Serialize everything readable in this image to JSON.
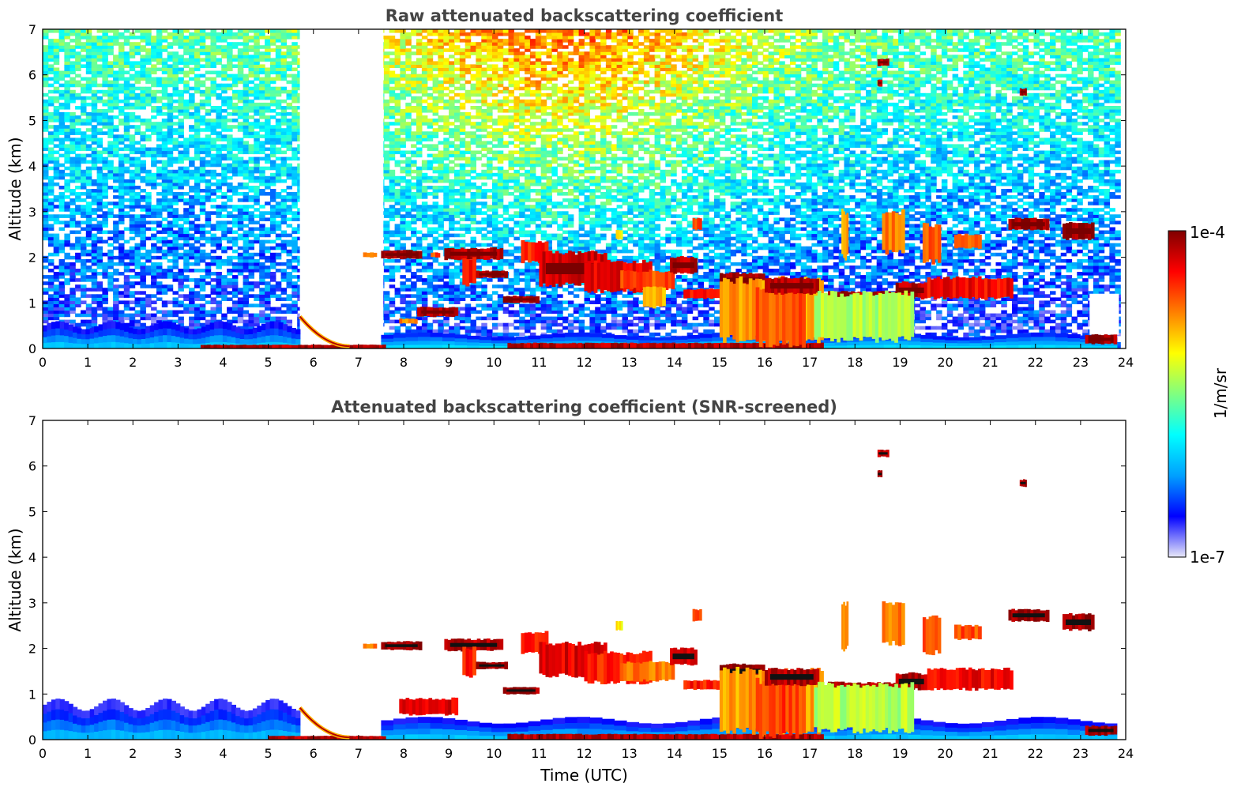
{
  "chart_data": [
    {
      "type": "heatmap",
      "title": "Raw attenuated backscattering coefficient",
      "xlabel": "",
      "ylabel": "Altitude (km)",
      "xlim": [
        0,
        24
      ],
      "ylim": [
        0,
        7
      ],
      "x_ticks": [
        "0",
        "1",
        "2",
        "3",
        "4",
        "5",
        "6",
        "7",
        "8",
        "9",
        "10",
        "11",
        "12",
        "13",
        "14",
        "15",
        "16",
        "17",
        "18",
        "19",
        "20",
        "21",
        "22",
        "23",
        "24"
      ],
      "y_ticks": [
        "0",
        "1",
        "2",
        "3",
        "4",
        "5",
        "6",
        "7"
      ],
      "noise_background": true,
      "features": [
        {
          "kind": "boundary_layer",
          "t0": 0,
          "t1": 5.7,
          "z0": 0,
          "z1": 0.6,
          "level": 0.12
        },
        {
          "kind": "boundary_layer",
          "t0": 7.5,
          "t1": 23.8,
          "z0": 0,
          "z1": 0.35,
          "level": 0.15
        },
        {
          "kind": "surface_layer",
          "t0": 3.5,
          "t1": 7.6,
          "z0": 0,
          "z1": 0.08,
          "level": 0.95
        },
        {
          "kind": "surface_layer",
          "t0": 10.3,
          "t1": 17.3,
          "z0": 0,
          "z1": 0.12,
          "level": 0.95
        },
        {
          "kind": "aerosol_arc",
          "t0": 5.7,
          "t1": 6.8,
          "z0": 0,
          "z1": 0.65,
          "level": 0.7
        },
        {
          "kind": "cloud",
          "t0": 7.1,
          "t1": 7.4,
          "z0": 2.0,
          "z1": 2.1,
          "level": 0.75
        },
        {
          "kind": "cloud",
          "t0": 7.5,
          "t1": 8.4,
          "z0": 1.97,
          "z1": 2.15,
          "level": 0.98
        },
        {
          "kind": "cloud",
          "t0": 8.6,
          "t1": 8.8,
          "z0": 2.0,
          "z1": 2.1,
          "level": 0.8
        },
        {
          "kind": "cloud",
          "t0": 8.9,
          "t1": 10.2,
          "z0": 1.95,
          "z1": 2.2,
          "level": 0.95
        },
        {
          "kind": "cloud",
          "t0": 9.3,
          "t1": 9.6,
          "z0": 1.4,
          "z1": 2.0,
          "level": 0.85
        },
        {
          "kind": "cloud",
          "t0": 9.6,
          "t1": 10.3,
          "z0": 1.55,
          "z1": 1.7,
          "level": 0.97
        },
        {
          "kind": "cloud",
          "t0": 8.3,
          "t1": 9.2,
          "z0": 0.7,
          "z1": 0.9,
          "level": 0.95
        },
        {
          "kind": "cloud",
          "t0": 7.9,
          "t1": 8.3,
          "z0": 0.55,
          "z1": 0.65,
          "level": 0.75
        },
        {
          "kind": "cloud",
          "t0": 10.2,
          "t1": 11.0,
          "z0": 1.0,
          "z1": 1.15,
          "level": 0.97
        },
        {
          "kind": "cloud",
          "t0": 10.6,
          "t1": 11.2,
          "z0": 1.9,
          "z1": 2.35,
          "level": 0.85
        },
        {
          "kind": "cloud",
          "t0": 11.0,
          "t1": 12.5,
          "z0": 1.4,
          "z1": 2.1,
          "level": 0.93
        },
        {
          "kind": "cloud",
          "t0": 12.0,
          "t1": 13.5,
          "z0": 1.25,
          "z1": 1.9,
          "level": 0.9
        },
        {
          "kind": "cloud",
          "t0": 12.8,
          "t1": 14.0,
          "z0": 1.3,
          "z1": 1.7,
          "level": 0.8
        },
        {
          "kind": "cloud",
          "t0": 13.3,
          "t1": 13.8,
          "z0": 0.9,
          "z1": 1.35,
          "level": 0.7
        },
        {
          "kind": "cloud",
          "t0": 13.9,
          "t1": 14.5,
          "z0": 1.65,
          "z1": 2.0,
          "level": 0.93
        },
        {
          "kind": "cloud",
          "t0": 14.2,
          "t1": 15.0,
          "z0": 1.1,
          "z1": 1.3,
          "level": 0.85
        },
        {
          "kind": "cloud",
          "t0": 15.0,
          "t1": 16.0,
          "z0": 1.35,
          "z1": 1.65,
          "level": 0.97
        },
        {
          "kind": "cloud",
          "t0": 15.0,
          "t1": 17.3,
          "z0": 0.2,
          "z1": 1.5,
          "level": 0.72
        },
        {
          "kind": "cloud",
          "t0": 15.8,
          "t1": 16.9,
          "z0": 0.1,
          "z1": 1.3,
          "level": 0.8
        },
        {
          "kind": "cloud",
          "t0": 16.0,
          "t1": 17.2,
          "z0": 1.2,
          "z1": 1.55,
          "level": 0.95
        },
        {
          "kind": "cloud",
          "t0": 17.4,
          "t1": 19.0,
          "z0": 0.95,
          "z1": 1.25,
          "level": 0.95
        },
        {
          "kind": "cloud",
          "t0": 18.9,
          "t1": 19.6,
          "z0": 1.1,
          "z1": 1.45,
          "level": 0.95
        },
        {
          "kind": "cloud",
          "t0": 17.1,
          "t1": 19.3,
          "z0": 0.2,
          "z1": 1.2,
          "level": 0.55
        },
        {
          "kind": "cloud",
          "t0": 17.7,
          "t1": 17.85,
          "z0": 2.0,
          "z1": 3.0,
          "level": 0.7
        },
        {
          "kind": "cloud",
          "t0": 18.6,
          "t1": 19.1,
          "z0": 2.1,
          "z1": 3.0,
          "level": 0.75
        },
        {
          "kind": "cloud",
          "t0": 19.5,
          "t1": 19.9,
          "z0": 1.9,
          "z1": 2.7,
          "level": 0.8
        },
        {
          "kind": "cloud",
          "t0": 19.6,
          "t1": 21.5,
          "z0": 1.1,
          "z1": 1.55,
          "level": 0.88
        },
        {
          "kind": "cloud",
          "t0": 20.2,
          "t1": 20.8,
          "z0": 2.2,
          "z1": 2.5,
          "level": 0.8
        },
        {
          "kind": "cloud",
          "t0": 21.4,
          "t1": 22.3,
          "z0": 2.6,
          "z1": 2.85,
          "level": 0.97
        },
        {
          "kind": "cloud",
          "t0": 22.6,
          "t1": 23.3,
          "z0": 2.4,
          "z1": 2.75,
          "level": 0.97
        },
        {
          "kind": "cloud",
          "t0": 23.1,
          "t1": 23.8,
          "z0": 0.1,
          "z1": 0.3,
          "level": 0.97
        },
        {
          "kind": "cloud",
          "t0": 14.4,
          "t1": 14.6,
          "z0": 2.6,
          "z1": 2.85,
          "level": 0.8
        },
        {
          "kind": "cloud",
          "t0": 12.7,
          "t1": 12.85,
          "z0": 2.4,
          "z1": 2.6,
          "level": 0.65
        },
        {
          "kind": "cloud",
          "t0": 18.5,
          "t1": 18.75,
          "z0": 6.2,
          "z1": 6.35,
          "level": 0.95
        },
        {
          "kind": "cloud",
          "t0": 21.65,
          "t1": 21.8,
          "z0": 5.55,
          "z1": 5.7,
          "level": 0.95
        },
        {
          "kind": "cloud",
          "t0": 18.5,
          "t1": 18.6,
          "z0": 5.75,
          "z1": 5.9,
          "level": 0.95
        }
      ]
    },
    {
      "type": "heatmap",
      "title": "Attenuated backscattering coefficient (SNR-screened)",
      "xlabel": "Time (UTC)",
      "ylabel": "Altitude (km)",
      "xlim": [
        0,
        24
      ],
      "ylim": [
        0,
        7
      ],
      "x_ticks": [
        "0",
        "1",
        "2",
        "3",
        "4",
        "5",
        "6",
        "7",
        "8",
        "9",
        "10",
        "11",
        "12",
        "13",
        "14",
        "15",
        "16",
        "17",
        "18",
        "19",
        "20",
        "21",
        "22",
        "23",
        "24"
      ],
      "y_ticks": [
        "0",
        "1",
        "2",
        "3",
        "4",
        "5",
        "6",
        "7"
      ],
      "noise_background": false,
      "features": [
        {
          "kind": "boundary_layer",
          "t0": 0,
          "t1": 5.7,
          "z0": 0,
          "z1": 0.9,
          "level": 0.1
        },
        {
          "kind": "boundary_layer",
          "t0": 7.5,
          "t1": 23.8,
          "z0": 0,
          "z1": 0.5,
          "level": 0.12
        },
        {
          "kind": "surface_layer",
          "t0": 5.0,
          "t1": 7.6,
          "z0": 0,
          "z1": 0.08,
          "level": 0.95
        },
        {
          "kind": "surface_layer",
          "t0": 10.3,
          "t1": 17.3,
          "z0": 0,
          "z1": 0.12,
          "level": 0.95
        },
        {
          "kind": "aerosol_arc",
          "t0": 5.7,
          "t1": 6.8,
          "z0": 0,
          "z1": 0.65,
          "level": 0.7
        },
        {
          "kind": "cloud",
          "t0": 7.1,
          "t1": 7.4,
          "z0": 2.0,
          "z1": 2.1,
          "level": 0.75
        },
        {
          "kind": "cloud",
          "t0": 7.5,
          "t1": 8.4,
          "z0": 1.97,
          "z1": 2.15,
          "level": 0.98
        },
        {
          "kind": "cloud",
          "t0": 8.9,
          "t1": 10.2,
          "z0": 1.95,
          "z1": 2.2,
          "level": 0.95
        },
        {
          "kind": "cloud",
          "t0": 9.3,
          "t1": 9.6,
          "z0": 1.4,
          "z1": 2.0,
          "level": 0.85
        },
        {
          "kind": "cloud",
          "t0": 9.6,
          "t1": 10.3,
          "z0": 1.55,
          "z1": 1.7,
          "level": 0.97
        },
        {
          "kind": "cloud",
          "t0": 7.9,
          "t1": 9.2,
          "z0": 0.55,
          "z1": 0.9,
          "level": 0.9
        },
        {
          "kind": "cloud",
          "t0": 10.2,
          "t1": 11.0,
          "z0": 1.0,
          "z1": 1.15,
          "level": 0.97
        },
        {
          "kind": "cloud",
          "t0": 10.6,
          "t1": 11.2,
          "z0": 1.9,
          "z1": 2.35,
          "level": 0.85
        },
        {
          "kind": "cloud",
          "t0": 11.0,
          "t1": 12.5,
          "z0": 1.4,
          "z1": 2.1,
          "level": 0.9
        },
        {
          "kind": "cloud",
          "t0": 12.0,
          "t1": 13.5,
          "z0": 1.25,
          "z1": 1.9,
          "level": 0.85
        },
        {
          "kind": "cloud",
          "t0": 12.8,
          "t1": 14.0,
          "z0": 1.3,
          "z1": 1.7,
          "level": 0.75
        },
        {
          "kind": "cloud",
          "t0": 13.9,
          "t1": 14.5,
          "z0": 1.65,
          "z1": 2.0,
          "level": 0.93
        },
        {
          "kind": "cloud",
          "t0": 14.2,
          "t1": 15.0,
          "z0": 1.1,
          "z1": 1.3,
          "level": 0.85
        },
        {
          "kind": "cloud",
          "t0": 15.0,
          "t1": 16.0,
          "z0": 1.35,
          "z1": 1.65,
          "level": 0.97
        },
        {
          "kind": "cloud",
          "t0": 15.0,
          "t1": 17.3,
          "z0": 0.2,
          "z1": 1.5,
          "level": 0.72
        },
        {
          "kind": "cloud",
          "t0": 15.8,
          "t1": 16.9,
          "z0": 0.1,
          "z1": 1.3,
          "level": 0.82
        },
        {
          "kind": "cloud",
          "t0": 16.0,
          "t1": 17.2,
          "z0": 1.2,
          "z1": 1.55,
          "level": 0.95
        },
        {
          "kind": "cloud",
          "t0": 17.4,
          "t1": 19.0,
          "z0": 0.95,
          "z1": 1.25,
          "level": 0.95
        },
        {
          "kind": "cloud",
          "t0": 18.9,
          "t1": 19.6,
          "z0": 1.1,
          "z1": 1.45,
          "level": 0.95
        },
        {
          "kind": "cloud",
          "t0": 17.1,
          "t1": 19.3,
          "z0": 0.2,
          "z1": 1.2,
          "level": 0.55
        },
        {
          "kind": "cloud",
          "t0": 17.7,
          "t1": 17.85,
          "z0": 2.0,
          "z1": 3.0,
          "level": 0.7
        },
        {
          "kind": "cloud",
          "t0": 18.6,
          "t1": 19.1,
          "z0": 2.1,
          "z1": 3.0,
          "level": 0.75
        },
        {
          "kind": "cloud",
          "t0": 19.5,
          "t1": 19.9,
          "z0": 1.9,
          "z1": 2.7,
          "level": 0.8
        },
        {
          "kind": "cloud",
          "t0": 19.6,
          "t1": 21.5,
          "z0": 1.1,
          "z1": 1.55,
          "level": 0.88
        },
        {
          "kind": "cloud",
          "t0": 20.2,
          "t1": 20.8,
          "z0": 2.2,
          "z1": 2.5,
          "level": 0.8
        },
        {
          "kind": "cloud",
          "t0": 21.4,
          "t1": 22.3,
          "z0": 2.6,
          "z1": 2.85,
          "level": 0.97
        },
        {
          "kind": "cloud",
          "t0": 22.6,
          "t1": 23.3,
          "z0": 2.4,
          "z1": 2.75,
          "level": 0.97
        },
        {
          "kind": "cloud",
          "t0": 23.1,
          "t1": 23.8,
          "z0": 0.1,
          "z1": 0.3,
          "level": 0.97
        },
        {
          "kind": "cloud",
          "t0": 14.4,
          "t1": 14.6,
          "z0": 2.6,
          "z1": 2.85,
          "level": 0.8
        },
        {
          "kind": "cloud",
          "t0": 12.7,
          "t1": 12.85,
          "z0": 2.4,
          "z1": 2.6,
          "level": 0.65
        },
        {
          "kind": "cloud",
          "t0": 18.5,
          "t1": 18.75,
          "z0": 6.2,
          "z1": 6.35,
          "level": 0.95
        },
        {
          "kind": "cloud",
          "t0": 21.65,
          "t1": 21.8,
          "z0": 5.55,
          "z1": 5.7,
          "level": 0.95
        },
        {
          "kind": "cloud",
          "t0": 18.5,
          "t1": 18.6,
          "z0": 5.75,
          "z1": 5.9,
          "level": 0.95
        }
      ]
    }
  ],
  "colorbar": {
    "max_label": "1e-4",
    "min_label": "1e-7",
    "unit_label": "1/m/sr",
    "colormap": "jet",
    "colors": [
      "#e8e8f8",
      "#0000ff",
      "#00a0ff",
      "#00ffff",
      "#80ff80",
      "#ffff00",
      "#ff8000",
      "#ff0000",
      "#800000"
    ]
  }
}
